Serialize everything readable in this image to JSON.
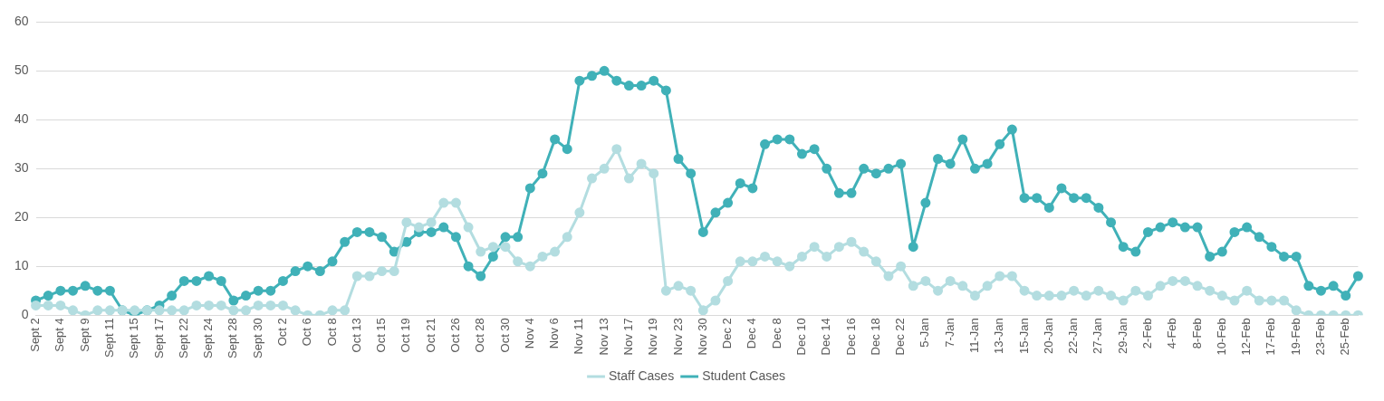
{
  "chart_data": {
    "type": "line",
    "categories": [
      "Sept 2",
      null,
      "Sept 4",
      null,
      "Sept 9",
      null,
      "Sept 11",
      null,
      "Sept 15",
      null,
      "Sept 17",
      null,
      "Sept 22",
      null,
      "Sept 24",
      null,
      "Sept 28",
      null,
      "Sept 30",
      null,
      "Oct 2",
      null,
      "Oct 6",
      null,
      "Oct 8",
      null,
      "Oct 13",
      null,
      "Oct 15",
      null,
      "Oct 19",
      null,
      "Oct 21",
      null,
      "Oct 26",
      null,
      "Oct 28",
      null,
      "Oct 30",
      null,
      "Nov 4",
      null,
      "Nov 6",
      null,
      "Nov 11",
      null,
      "Nov 13",
      null,
      "Nov 17",
      null,
      "Nov 19",
      null,
      "Nov 23",
      null,
      "Nov 30",
      null,
      "Dec 2",
      null,
      "Dec 4",
      null,
      "Dec 8",
      null,
      "Dec 10",
      null,
      "Dec 14",
      null,
      "Dec 16",
      null,
      "Dec 18",
      null,
      "Dec 22",
      null,
      "5-Jan",
      null,
      "7-Jan",
      null,
      "11-Jan",
      null,
      "13-Jan",
      null,
      "15-Jan",
      null,
      "20-Jan",
      null,
      "22-Jan",
      null,
      "27-Jan",
      null,
      "29-Jan",
      null,
      "2-Feb",
      null,
      "4-Feb",
      null,
      "8-Feb",
      null,
      "10-Feb",
      null,
      "12-Feb",
      null,
      "17-Feb",
      null,
      "19-Feb",
      null,
      "23-Feb",
      null,
      "25-Feb",
      null
    ],
    "series": [
      {
        "name": "Staff Cases",
        "color": "#b3dde0",
        "values": [
          2,
          2,
          2,
          1,
          0,
          1,
          1,
          1,
          1,
          1,
          1,
          1,
          1,
          2,
          2,
          2,
          1,
          1,
          2,
          2,
          2,
          1,
          0,
          0,
          1,
          1,
          8,
          8,
          9,
          9,
          19,
          18,
          19,
          23,
          23,
          18,
          13,
          14,
          14,
          11,
          10,
          12,
          13,
          16,
          21,
          28,
          30,
          34,
          28,
          31,
          29,
          5,
          6,
          5,
          1,
          3,
          7,
          11,
          11,
          12,
          11,
          10,
          12,
          14,
          12,
          14,
          15,
          13,
          11,
          8,
          10,
          6,
          7,
          5,
          7,
          6,
          4,
          6,
          8,
          8,
          5,
          4,
          4,
          4,
          5,
          4,
          5,
          4,
          3,
          5,
          4,
          6,
          7,
          7,
          6,
          5,
          4,
          3,
          5,
          3,
          3,
          3,
          1,
          0,
          0,
          0,
          0,
          0
        ]
      },
      {
        "name": "Student Cases",
        "color": "#40b1b8",
        "values": [
          3,
          4,
          5,
          5,
          6,
          5,
          5,
          1,
          0,
          1,
          2,
          4,
          7,
          7,
          8,
          7,
          3,
          4,
          5,
          5,
          7,
          9,
          10,
          9,
          11,
          15,
          17,
          17,
          16,
          13,
          15,
          17,
          17,
          18,
          16,
          10,
          8,
          12,
          16,
          16,
          26,
          29,
          36,
          34,
          48,
          49,
          50,
          48,
          47,
          47,
          48,
          46,
          32,
          29,
          17,
          21,
          23,
          27,
          26,
          35,
          36,
          36,
          33,
          34,
          30,
          25,
          25,
          30,
          29,
          30,
          31,
          14,
          23,
          32,
          31,
          36,
          30,
          31,
          35,
          38,
          24,
          24,
          22,
          26,
          24,
          24,
          22,
          19,
          14,
          13,
          17,
          18,
          19,
          18,
          18,
          12,
          13,
          17,
          18,
          16,
          14,
          12,
          12,
          6,
          5,
          6,
          4,
          8
        ]
      }
    ],
    "ylim": [
      0,
      60
    ],
    "yticks": [
      0,
      10,
      20,
      30,
      40,
      50,
      60
    ],
    "grid": "y",
    "legend": "bottom",
    "marker": "circle",
    "line_style": "solid"
  }
}
